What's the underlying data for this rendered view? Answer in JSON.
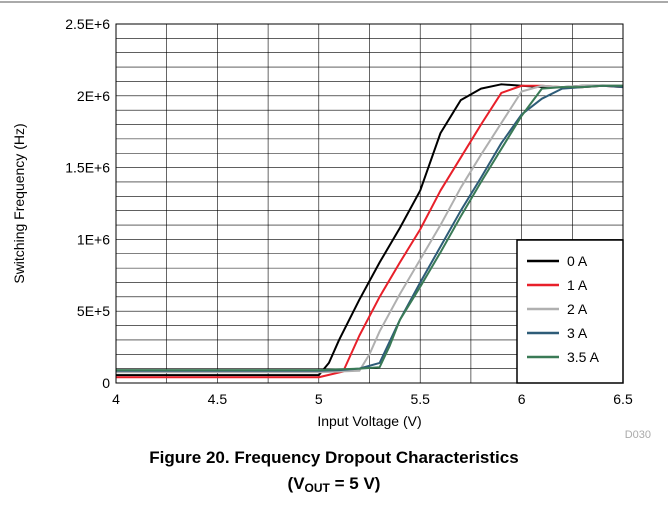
{
  "chart_data": {
    "type": "line",
    "xlabel": "Input Voltage (V)",
    "ylabel": "Switching Frequency (Hz)",
    "xlim": [
      4,
      6.5
    ],
    "ylim": [
      0,
      2500000
    ],
    "x_ticks": [
      4,
      4.5,
      5,
      5.5,
      6,
      6.5
    ],
    "x_tick_labels": [
      "4",
      "4.5",
      "5",
      "5.5",
      "6",
      "6.5"
    ],
    "y_ticks": [
      0,
      500000,
      1000000,
      1500000,
      2000000,
      2500000
    ],
    "y_tick_labels": [
      "0",
      "5E+5",
      "1E+6",
      "1.5E+6",
      "2E+6",
      "2.5E+6"
    ],
    "x_minor_step": 0.25,
    "y_minor_step": 100000,
    "grid": true,
    "legend_position": "bottom-right",
    "doc_id": "D030",
    "series": [
      {
        "name": "0 A",
        "color": "#000000",
        "x": [
          4,
          4.5,
          5,
          5.05,
          5.1,
          5.2,
          5.3,
          5.4,
          5.5,
          5.6,
          5.7,
          5.8,
          5.9,
          6,
          6.1,
          6.2,
          6.3,
          6.4,
          6.5
        ],
        "y": [
          55000,
          55000,
          55000,
          140000,
          300000,
          580000,
          840000,
          1080000,
          1340000,
          1740000,
          1970000,
          2050000,
          2080000,
          2070000,
          2060000,
          2060000,
          2070000,
          2070000,
          2070000
        ]
      },
      {
        "name": "1 A",
        "color": "#e8202a",
        "x": [
          4,
          4.5,
          5,
          5.12,
          5.2,
          5.3,
          5.4,
          5.5,
          5.6,
          5.7,
          5.8,
          5.9,
          6,
          6.1,
          6.2,
          6.3,
          6.4,
          6.5
        ],
        "y": [
          40000,
          40000,
          40000,
          80000,
          330000,
          600000,
          840000,
          1070000,
          1340000,
          1570000,
          1800000,
          2020000,
          2070000,
          2070000,
          2060000,
          2060000,
          2070000,
          2060000
        ]
      },
      {
        "name": "2 A",
        "color": "#b0b0b0",
        "x": [
          4,
          4.5,
          5,
          5.1,
          5.2,
          5.25,
          5.3,
          5.4,
          5.5,
          5.6,
          5.7,
          5.8,
          5.9,
          6,
          6.1,
          6.2,
          6.3,
          6.4,
          6.5
        ],
        "y": [
          75000,
          75000,
          75000,
          80000,
          85000,
          200000,
          360000,
          620000,
          860000,
          1100000,
          1360000,
          1590000,
          1810000,
          2030000,
          2070000,
          2060000,
          2070000,
          2070000,
          2070000
        ]
      },
      {
        "name": "3 A",
        "color": "#2e5c78",
        "x": [
          4,
          4.5,
          5,
          5.1,
          5.2,
          5.3,
          5.4,
          5.5,
          5.6,
          5.7,
          5.8,
          5.9,
          6,
          6.1,
          6.2,
          6.3,
          6.4,
          6.5
        ],
        "y": [
          85000,
          85000,
          85000,
          90000,
          100000,
          140000,
          440000,
          700000,
          950000,
          1200000,
          1430000,
          1670000,
          1870000,
          1980000,
          2050000,
          2060000,
          2070000,
          2060000
        ]
      },
      {
        "name": "3.5 A",
        "color": "#3a7a56",
        "x": [
          4,
          4.5,
          5,
          5.1,
          5.2,
          5.3,
          5.35,
          5.4,
          5.5,
          5.6,
          5.7,
          5.8,
          5.9,
          6,
          6.1,
          6.2,
          6.3,
          6.4,
          6.5
        ],
        "y": [
          90000,
          90000,
          90000,
          95000,
          100000,
          110000,
          260000,
          440000,
          670000,
          910000,
          1160000,
          1400000,
          1630000,
          1860000,
          2050000,
          2060000,
          2060000,
          2070000,
          2070000
        ]
      }
    ]
  },
  "caption": {
    "line1": "Figure 20. Frequency Dropout Characteristics",
    "line2_prefix": "(V",
    "line2_sub": "OUT",
    "line2_suffix": " = 5 V)"
  }
}
